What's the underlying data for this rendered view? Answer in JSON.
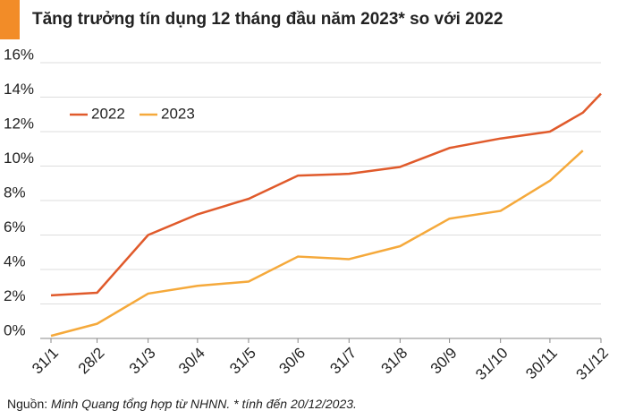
{
  "chart_data": {
    "type": "line",
    "title": "Tăng trưởng tín dụng 12 tháng đầu năm 2023* so với 2022",
    "source": {
      "label": "Nguồn:",
      "text": "Minh Quang tổng hợp từ NHNN. * tính đến 20/12/2023."
    },
    "x": [
      31,
      59,
      90,
      120,
      151,
      181,
      212,
      243,
      273,
      304,
      334,
      354,
      365
    ],
    "xlim": [
      31,
      365
    ],
    "xticks": [
      {
        "value": 31,
        "label": "31/1"
      },
      {
        "value": 59,
        "label": "28/2"
      },
      {
        "value": 90,
        "label": "31/3"
      },
      {
        "value": 120,
        "label": "30/4"
      },
      {
        "value": 151,
        "label": "31/5"
      },
      {
        "value": 181,
        "label": "30/6"
      },
      {
        "value": 212,
        "label": "31/7"
      },
      {
        "value": 243,
        "label": "31/8"
      },
      {
        "value": 273,
        "label": "30/9"
      },
      {
        "value": 304,
        "label": "31/10"
      },
      {
        "value": 334,
        "label": "30/11"
      },
      {
        "value": 365,
        "label": "31/12"
      }
    ],
    "series": [
      {
        "name": "2022",
        "color": "#e05a2b",
        "values": [
          2.5,
          2.65,
          6.0,
          7.2,
          8.1,
          9.45,
          9.55,
          9.95,
          11.05,
          11.6,
          12.0,
          13.1,
          14.2
        ]
      },
      {
        "name": "2023",
        "color": "#f5a93b",
        "values": [
          0.15,
          0.85,
          2.6,
          3.05,
          3.3,
          4.75,
          4.6,
          5.35,
          6.95,
          7.4,
          9.15,
          10.9,
          null
        ]
      }
    ],
    "ylim": [
      0,
      16
    ],
    "yticks": [
      {
        "value": 0,
        "label": "0%"
      },
      {
        "value": 2,
        "label": "2%"
      },
      {
        "value": 4,
        "label": "4%"
      },
      {
        "value": 6,
        "label": "6%"
      },
      {
        "value": 8,
        "label": "8%"
      },
      {
        "value": 10,
        "label": "10%"
      },
      {
        "value": 12,
        "label": "12%"
      },
      {
        "value": 14,
        "label": "14%"
      },
      {
        "value": 16,
        "label": "16%"
      }
    ],
    "grid": true,
    "legend": "top-left",
    "accent_color": "#f28c28"
  }
}
